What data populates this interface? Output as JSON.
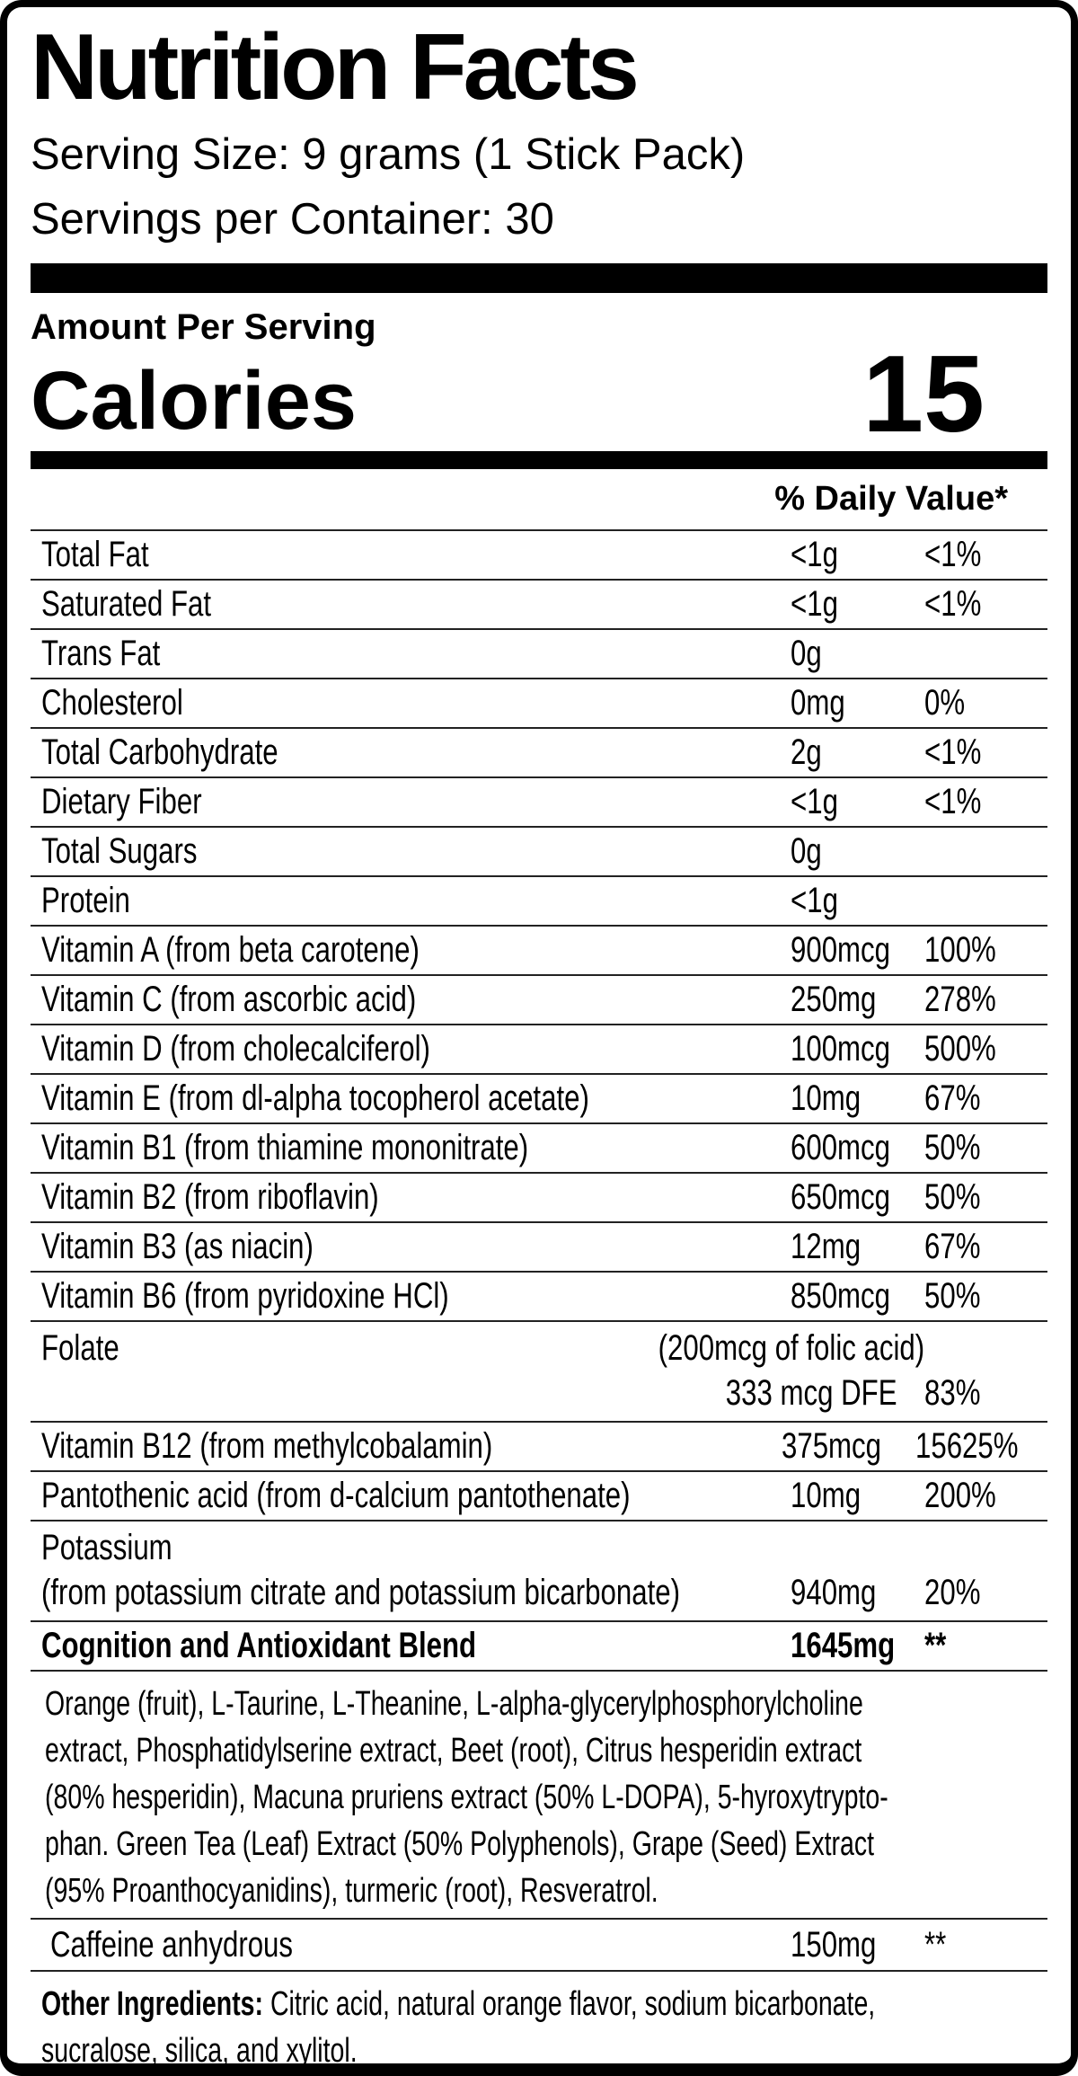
{
  "header": {
    "title": "Nutrition Facts",
    "serving_size": "Serving Size: 9 grams (1 Stick Pack)",
    "servings_per_container": "Servings per Container: 30"
  },
  "calories": {
    "amount_label": "Amount Per Serving",
    "label": "Calories",
    "value": "15"
  },
  "daily_value_header": "% Daily Value*",
  "nutrients": [
    {
      "name": "Total Fat",
      "amount": "<1g",
      "dv": "<1%"
    },
    {
      "name": "Saturated Fat",
      "amount": "<1g",
      "dv": "<1%"
    },
    {
      "name": "Trans Fat",
      "amount": "0g",
      "dv": ""
    },
    {
      "name": "Cholesterol",
      "amount": "0mg",
      "dv": "0%"
    },
    {
      "name": "Total Carbohydrate",
      "amount": "2g",
      "dv": "<1%"
    },
    {
      "name": "Dietary Fiber",
      "amount": "<1g",
      "dv": "<1%"
    },
    {
      "name": "Total Sugars",
      "amount": "0g",
      "dv": ""
    },
    {
      "name": "Protein",
      "amount": "<1g",
      "dv": ""
    },
    {
      "name": "Vitamin A (from beta carotene)",
      "amount": "900mcg",
      "dv": "100%"
    },
    {
      "name": "Vitamin C (from ascorbic acid)",
      "amount": "250mg",
      "dv": "278%"
    },
    {
      "name": "Vitamin D (from cholecalciferol)",
      "amount": "100mcg",
      "dv": "500%"
    },
    {
      "name": "Vitamin E (from dl-alpha tocopherol acetate)",
      "amount": "10mg",
      "dv": "67%"
    },
    {
      "name": "Vitamin B1 (from thiamine mononitrate)",
      "amount": "600mcg",
      "dv": "50%"
    },
    {
      "name": "Vitamin B2 (from riboflavin)",
      "amount": "650mcg",
      "dv": "50%"
    },
    {
      "name": "Vitamin B3 (as niacin)",
      "amount": "12mg",
      "dv": "67%"
    },
    {
      "name": "Vitamin B6 (from pyridoxine HCl)",
      "amount": "850mcg",
      "dv": "50%"
    }
  ],
  "folate": {
    "name": "Folate",
    "note": "(200mcg of folic acid)",
    "amount": "333 mcg DFE",
    "dv": "83%"
  },
  "nutrients_after_folate": [
    {
      "name": "Vitamin B12 (from methylcobalamin)",
      "amount": "375mcg",
      "dv": "15625%"
    },
    {
      "name": "Pantothenic acid (from d-calcium pantothenate)",
      "amount": "10mg",
      "dv": "200%"
    }
  ],
  "potassium": {
    "name": "Potassium",
    "source": "(from potassium citrate and potassium bicarbonate)",
    "amount": "940mg",
    "dv": "20%"
  },
  "blend": {
    "name": "Cognition and Antioxidant Blend",
    "amount": "1645mg",
    "dv": "**",
    "description_lines": [
      "Orange (fruit), L-Taurine, L-Theanine, L-alpha-glycerylphosphorylcholine",
      "extract, Phosphatidylserine extract, Beet (root), Citrus hesperidin extract",
      "(80% hesperidin), Macuna pruriens extract (50% L-DOPA), 5-hyroxytrypto-",
      "phan. Green Tea (Leaf) Extract (50% Polyphenols), Grape (Seed) Extract",
      "(95% Proanthocyanidins), turmeric (root), Resveratrol."
    ]
  },
  "caffeine": {
    "name": "Caffeine anhydrous",
    "amount": "150mg",
    "dv": "**"
  },
  "other_ingredients": {
    "label": "Other Ingredients:",
    "line1_rest": " Citric acid, natural orange flavor, sodium bicarbonate,",
    "line2": "sucralose, silica, and xylitol."
  },
  "colors": {
    "text": "#000000",
    "background": "#ffffff",
    "rule": "#222222"
  }
}
